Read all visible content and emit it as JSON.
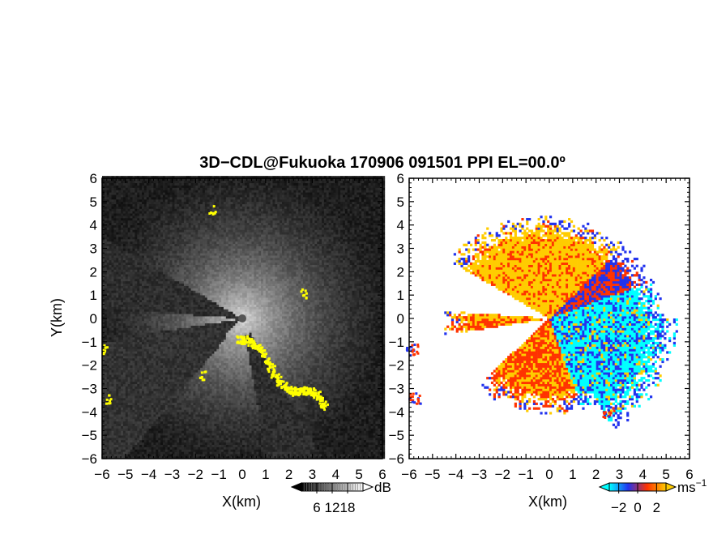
{
  "title": "3D−CDL@Fukuoka 170906 091501 PPI EL=00.0º",
  "chart_data": [
    {
      "type": "heatmap",
      "panel": "left",
      "quantity": "reflectivity / SNR intensity",
      "xlabel": "X(km)",
      "ylabel": "Y(km)",
      "xlim": [
        -6,
        6
      ],
      "ylim": [
        -6,
        6
      ],
      "x_ticks": [
        "−6",
        "−5",
        "−4",
        "−3",
        "−2",
        "−1",
        "0",
        "1",
        "2",
        "3",
        "4",
        "5",
        "6"
      ],
      "y_ticks": [
        "−6",
        "−5",
        "−4",
        "−3",
        "−2",
        "−1",
        "0",
        "1",
        "2",
        "3",
        "4",
        "5",
        "6"
      ],
      "colorbar": {
        "unit": "dB",
        "ticks": [
          "6",
          "12",
          "18"
        ],
        "values": [
          6,
          12,
          18
        ],
        "range": [
          0,
          24
        ],
        "colors": [
          "#000000",
          "#ffffff"
        ]
      },
      "highlight_color": "#ffff00",
      "background_color": "#2e2e2e"
    },
    {
      "type": "heatmap",
      "panel": "right",
      "quantity": "Doppler velocity",
      "xlabel": "X(km)",
      "xlim": [
        -6,
        6
      ],
      "ylim": [
        -6,
        6
      ],
      "x_ticks": [
        "−6",
        "−5",
        "−4",
        "−3",
        "−2",
        "−1",
        "0",
        "1",
        "2",
        "3",
        "4",
        "5",
        "6"
      ],
      "y_ticks": [
        "−6",
        "−5",
        "−4",
        "−3",
        "−2",
        "−1",
        "0",
        "1",
        "2",
        "3",
        "4",
        "5",
        "6"
      ],
      "colorbar": {
        "unit": "ms",
        "unit_exp": "−1",
        "ticks": [
          "−2",
          "0",
          "2"
        ],
        "values": [
          -2,
          0,
          2
        ],
        "range": [
          -3,
          3
        ],
        "colors": [
          "#00ffff",
          "#2233ee",
          "#ff3300",
          "#ffcc00"
        ]
      }
    }
  ]
}
